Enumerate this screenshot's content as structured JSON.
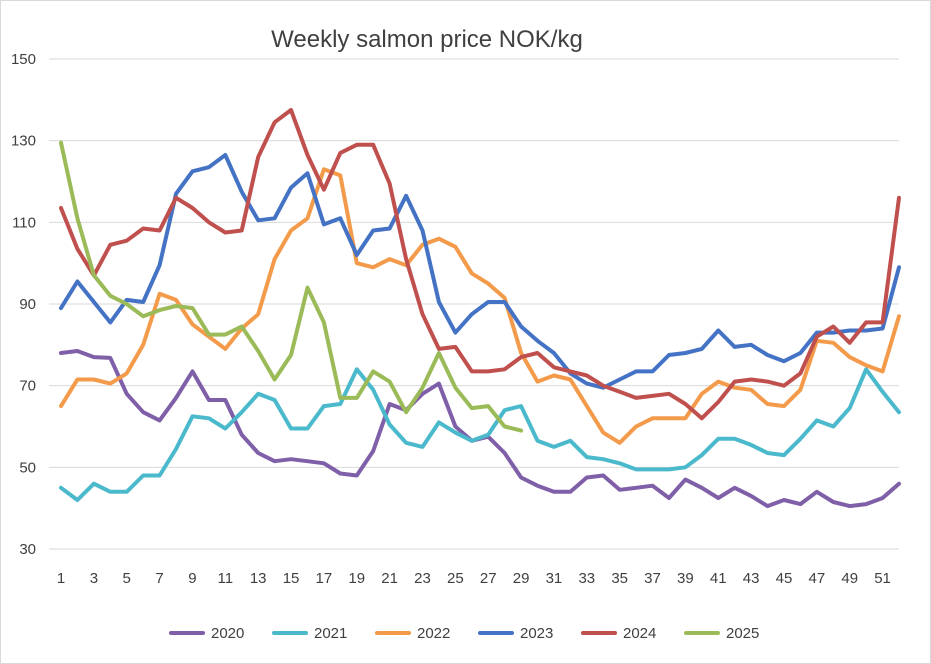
{
  "chart_data": {
    "type": "line",
    "title": "Weekly salmon price NOK/kg",
    "xlabel": "",
    "ylabel": "",
    "ylim": [
      30,
      150
    ],
    "yticks": [
      30,
      50,
      70,
      90,
      110,
      130,
      150
    ],
    "xlim": [
      1,
      52
    ],
    "xticks": [
      1,
      3,
      5,
      7,
      9,
      11,
      13,
      15,
      17,
      19,
      21,
      23,
      25,
      27,
      29,
      31,
      33,
      35,
      37,
      39,
      41,
      43,
      45,
      47,
      49,
      51
    ],
    "grid": "horizontal",
    "legend_position": "bottom",
    "series": [
      {
        "name": "2020",
        "color": "#7f5fa8",
        "values": [
          78,
          78.5,
          77,
          76.8,
          68,
          63.5,
          61.5,
          67,
          73.5,
          66.5,
          66.5,
          58,
          53.5,
          51.5,
          52,
          51.5,
          51,
          48.5,
          48,
          54,
          65.5,
          64,
          68,
          70.5,
          60,
          56.5,
          57.5,
          53.5,
          47.5,
          45.5,
          44,
          44,
          47.5,
          48,
          44.5,
          45,
          45.5,
          42.5,
          47,
          45,
          42.5,
          45,
          43,
          40.5,
          42,
          41,
          44,
          41.5,
          40.5,
          41,
          42.5,
          46
        ]
      },
      {
        "name": "2021",
        "color": "#4bb9cc",
        "values": [
          45,
          42,
          46,
          44,
          44,
          48,
          48,
          54.5,
          62.5,
          62,
          59.5,
          63.5,
          68,
          66.5,
          59.5,
          59.5,
          65,
          65.5,
          74,
          69,
          60.5,
          56,
          55,
          61,
          58.5,
          56.5,
          58,
          64,
          65,
          56.5,
          55,
          56.5,
          52.5,
          52,
          51,
          49.5,
          49.5,
          49.5,
          50,
          53,
          57,
          57,
          55.5,
          53.5,
          53,
          57,
          61.5,
          60,
          64.5,
          74,
          68.5,
          63.5
        ]
      },
      {
        "name": "2022",
        "color": "#f39b4a",
        "values": [
          65,
          71.5,
          71.5,
          70.5,
          73,
          80,
          92.5,
          91,
          85,
          82,
          79,
          84,
          87.5,
          101,
          108,
          111,
          123,
          121.5,
          100,
          99,
          101,
          99.5,
          104.5,
          106,
          104,
          97.5,
          95,
          91.5,
          78,
          71,
          72.5,
          71.5,
          65,
          58.5,
          56,
          60,
          62,
          62,
          62,
          68,
          71,
          69.5,
          69,
          65.5,
          65,
          69,
          81,
          80.5,
          77,
          75,
          73.5,
          87
        ]
      },
      {
        "name": "2023",
        "color": "#4472c4",
        "values": [
          89,
          95.5,
          90.5,
          85.5,
          91,
          90.5,
          99.5,
          117,
          122.5,
          123.5,
          126.5,
          117.5,
          110.5,
          111,
          118.5,
          122,
          109.5,
          111,
          102,
          108,
          108.5,
          116.5,
          108,
          90.5,
          83,
          87.5,
          90.5,
          90.5,
          84.5,
          81,
          78,
          73,
          70.5,
          69.5,
          71.5,
          73.5,
          73.5,
          77.5,
          78,
          79,
          83.5,
          79.5,
          80,
          77.5,
          76,
          78,
          83,
          83,
          83.5,
          83.5,
          84,
          99
        ]
      },
      {
        "name": "2024",
        "color": "#c0504d",
        "values": [
          113.5,
          103.5,
          97,
          104.5,
          105.5,
          108.5,
          108,
          116,
          113.5,
          110,
          107.5,
          108,
          126,
          134.5,
          137.5,
          126.5,
          118,
          127,
          129,
          129,
          119.5,
          101,
          87.5,
          79,
          79.5,
          73.5,
          73.5,
          74,
          77,
          78,
          74.5,
          73.5,
          72.5,
          70,
          68.5,
          67,
          67.5,
          68,
          65.5,
          62,
          66,
          71,
          71.5,
          71,
          70,
          73,
          82,
          84.5,
          80.5,
          85.5,
          85.5,
          116
        ]
      },
      {
        "name": "2025",
        "color": "#9bbb59",
        "values": [
          129.5,
          111,
          97,
          92,
          90,
          87,
          88.5,
          89.5,
          89,
          82.5,
          82.5,
          84.5,
          78.5,
          71.5,
          77.5,
          94,
          85.5,
          67,
          67,
          73.5,
          71,
          63.5,
          69.5,
          78,
          69.5,
          64.5,
          65,
          60,
          59
        ]
      }
    ]
  }
}
